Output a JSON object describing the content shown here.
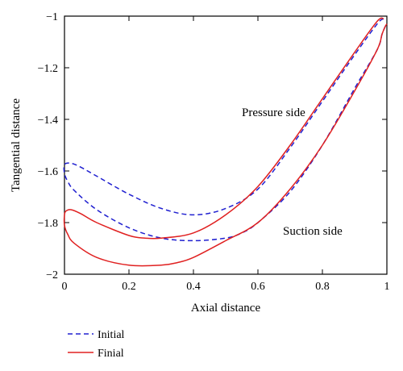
{
  "chart_data": {
    "type": "line",
    "xlabel": "Axial distance",
    "ylabel": "Tangential distance",
    "xlim": [
      0,
      1
    ],
    "ylim": [
      -2,
      -1
    ],
    "x_ticks": [
      "0",
      "0.2",
      "0.4",
      "0.6",
      "0.8",
      "1"
    ],
    "y_ticks": [
      "-1",
      "-1.2",
      "-1.4",
      "-1.6",
      "-1.8",
      "-2"
    ],
    "grid": false,
    "legend_position": "bottom-left, below plot",
    "annotations": [
      "Pressure side",
      "Suction side"
    ],
    "series": [
      {
        "name": "Initial",
        "color": "#2020d0",
        "style": "dashed",
        "x": [
          0.99,
          0.97,
          0.9,
          0.8,
          0.7,
          0.6,
          0.5,
          0.4,
          0.3,
          0.2,
          0.1,
          0.05,
          0.02,
          0.0,
          0.0,
          0.01,
          0.03,
          0.1,
          0.2,
          0.3,
          0.4,
          0.5,
          0.55,
          0.6,
          0.7,
          0.8,
          0.9,
          0.97,
          0.985,
          0.995,
          1.0
        ],
        "y": [
          -1.01,
          -1.03,
          -1.15,
          -1.33,
          -1.51,
          -1.67,
          -1.745,
          -1.77,
          -1.745,
          -1.69,
          -1.62,
          -1.585,
          -1.57,
          -1.575,
          -1.61,
          -1.64,
          -1.675,
          -1.75,
          -1.82,
          -1.86,
          -1.87,
          -1.86,
          -1.84,
          -1.8,
          -1.68,
          -1.5,
          -1.28,
          -1.13,
          -1.07,
          -1.04,
          -1.03
        ]
      },
      {
        "name": "Finial",
        "color": "#e02020",
        "style": "solid",
        "x": [
          0.99,
          0.97,
          0.9,
          0.8,
          0.7,
          0.6,
          0.5,
          0.4,
          0.3,
          0.25,
          0.2,
          0.1,
          0.05,
          0.02,
          0.005,
          0.0,
          0.0,
          0.01,
          0.03,
          0.1,
          0.2,
          0.3,
          0.35,
          0.4,
          0.5,
          0.6,
          0.7,
          0.8,
          0.9,
          0.97,
          0.985,
          0.995,
          1.0
        ],
        "y": [
          -1.01,
          -1.02,
          -1.14,
          -1.32,
          -1.5,
          -1.66,
          -1.77,
          -1.84,
          -1.86,
          -1.86,
          -1.85,
          -1.8,
          -1.765,
          -1.75,
          -1.755,
          -1.77,
          -1.81,
          -1.845,
          -1.88,
          -1.935,
          -1.965,
          -1.965,
          -1.955,
          -1.935,
          -1.87,
          -1.8,
          -1.67,
          -1.5,
          -1.29,
          -1.13,
          -1.07,
          -1.04,
          -1.03
        ]
      }
    ]
  }
}
